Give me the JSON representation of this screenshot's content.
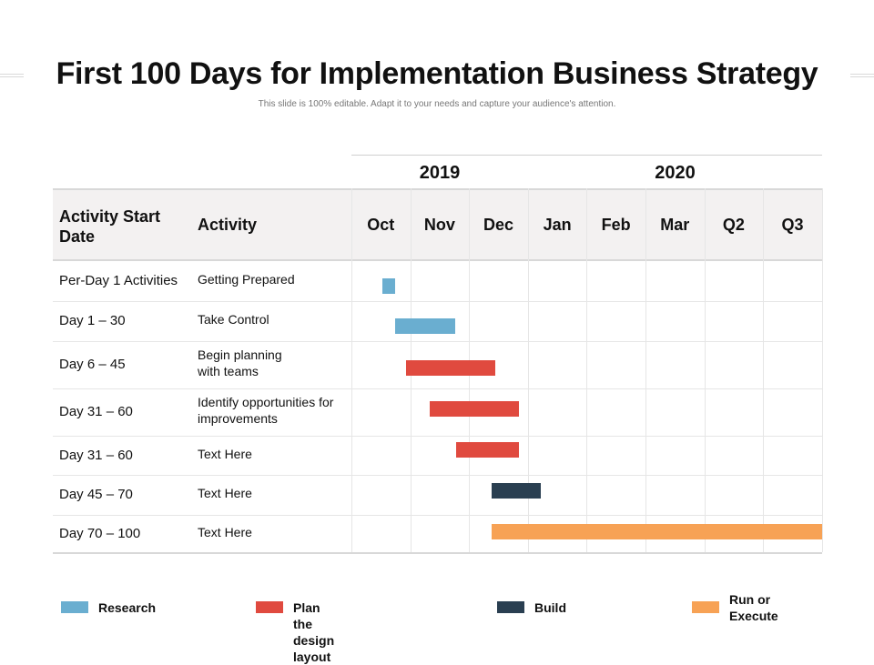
{
  "header": {
    "title": "First 100 Days for Implementation Business Strategy",
    "subtitle": "This slide is 100% editable.  Adapt it to your needs and capture your audience's attention."
  },
  "colors": {
    "research": "#6aaed0",
    "plan": "#e04a3f",
    "build": "#2a3f51",
    "execute": "#f7a255"
  },
  "table": {
    "years": [
      "2019",
      "2020"
    ],
    "col_date": "Activity Start Date",
    "col_activity": "Activity",
    "months": [
      "Oct",
      "Nov",
      "Dec",
      "Jan",
      "Feb",
      "Mar",
      "Q2",
      "Q3"
    ],
    "rows": [
      {
        "date": "Per-Day 1 Activities",
        "activity": "Getting Prepared"
      },
      {
        "date": "Day 1 – 30",
        "activity": "Take Control"
      },
      {
        "date": "Day 6 – 45",
        "activity": "Begin planning\nwith teams"
      },
      {
        "date": "Day 31 – 60",
        "activity": "Identify opportunities for\nimprovements"
      },
      {
        "date": "Day 31 – 60",
        "activity": "Text Here"
      },
      {
        "date": "Day 45 – 70",
        "activity": "Text Here"
      },
      {
        "date": "Day 70 – 100",
        "activity": "Text Here"
      }
    ]
  },
  "chart_data": {
    "type": "gantt",
    "categories": [
      "Oct",
      "Nov",
      "Dec",
      "Jan",
      "Feb",
      "Mar",
      "Q2",
      "Q3"
    ],
    "tasks": [
      {
        "row": 0,
        "phase": "research",
        "start": 0.52,
        "end": 0.75
      },
      {
        "row": 1,
        "phase": "research",
        "start": 0.75,
        "end": 1.77
      },
      {
        "row": 2,
        "phase": "plan",
        "start": 0.93,
        "end": 2.45
      },
      {
        "row": 3,
        "phase": "plan",
        "start": 1.33,
        "end": 2.85
      },
      {
        "row": 4,
        "phase": "plan",
        "start": 1.78,
        "end": 2.85
      },
      {
        "row": 5,
        "phase": "build",
        "start": 2.38,
        "end": 3.22
      },
      {
        "row": 6,
        "phase": "execute",
        "start": 2.38,
        "end": 8.0
      }
    ]
  },
  "legend": [
    {
      "key": "research",
      "label": "Research"
    },
    {
      "key": "plan",
      "label": "Plan the design layout"
    },
    {
      "key": "build",
      "label": "Build"
    },
    {
      "key": "execute",
      "label": "Run or\nExecute"
    }
  ]
}
